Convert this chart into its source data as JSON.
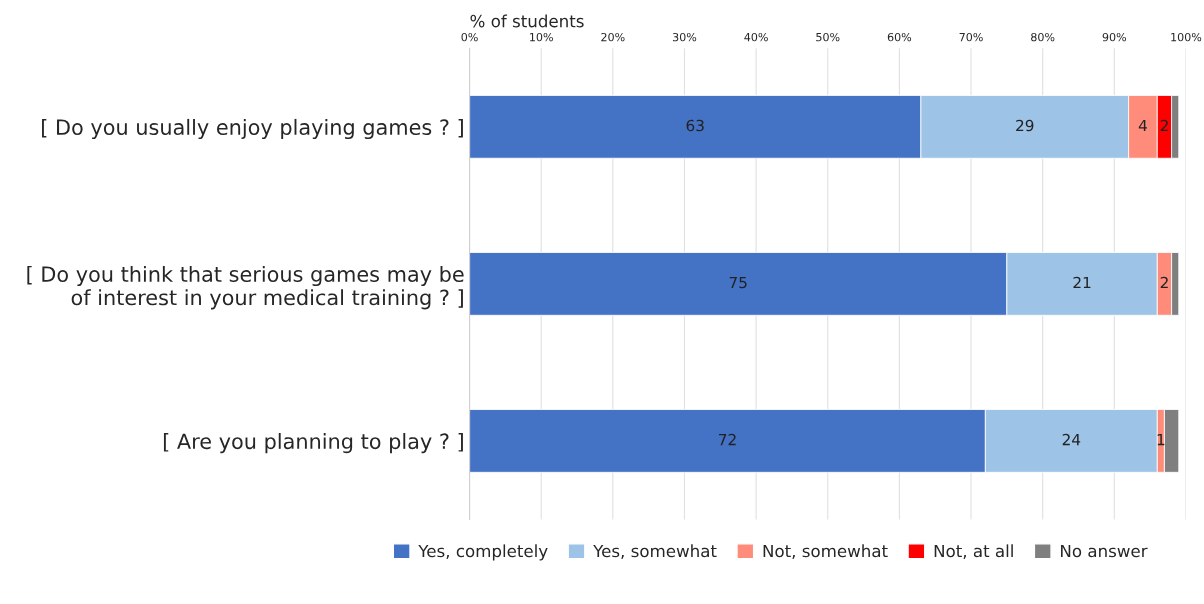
{
  "chart_data": {
    "type": "bar",
    "orientation": "horizontal",
    "stacked": true,
    "xlabel": "% of students",
    "categories": [
      "[ Do you usually enjoy playing games ? ]",
      "[ Do you think that serious games may be of interest in your medical training ? ]",
      "[ Are you planning to play ? ]"
    ],
    "series": [
      {
        "name": "Yes, completely",
        "color": "#4472c4",
        "values": [
          63,
          75,
          72
        ],
        "value_labels": [
          "63",
          "75",
          "72"
        ]
      },
      {
        "name": "Yes, somewhat",
        "color": "#9dc3e6",
        "values": [
          29,
          21,
          24
        ],
        "value_labels": [
          "29",
          "21",
          "24"
        ]
      },
      {
        "name": "Not, somewhat",
        "color": "#ff8c7a",
        "values": [
          4,
          2,
          1
        ],
        "value_labels": [
          "4",
          "2",
          "1"
        ]
      },
      {
        "name": "Not, at all",
        "color": "#ff0000",
        "values": [
          2,
          0,
          0
        ],
        "value_labels": [
          "2",
          null,
          null
        ]
      },
      {
        "name": "No answer",
        "color": "#7f7f7f",
        "values": [
          1,
          1,
          2
        ],
        "value_labels": [
          null,
          null,
          null
        ]
      }
    ],
    "xlim": [
      0,
      100
    ],
    "xticks": [
      {
        "value": 0,
        "label": "0%"
      },
      {
        "value": 10,
        "label": "10%"
      },
      {
        "value": 20,
        "label": "20%"
      },
      {
        "value": 30,
        "label": "30%"
      },
      {
        "value": 40,
        "label": "40%"
      },
      {
        "value": 50,
        "label": "50%"
      },
      {
        "value": 60,
        "label": "60%"
      },
      {
        "value": 70,
        "label": "70%"
      },
      {
        "value": 80,
        "label": "80%"
      },
      {
        "value": 90,
        "label": "90%"
      },
      {
        "value": 100,
        "label": "100%"
      }
    ],
    "grid": "x",
    "legend": "bottom"
  }
}
